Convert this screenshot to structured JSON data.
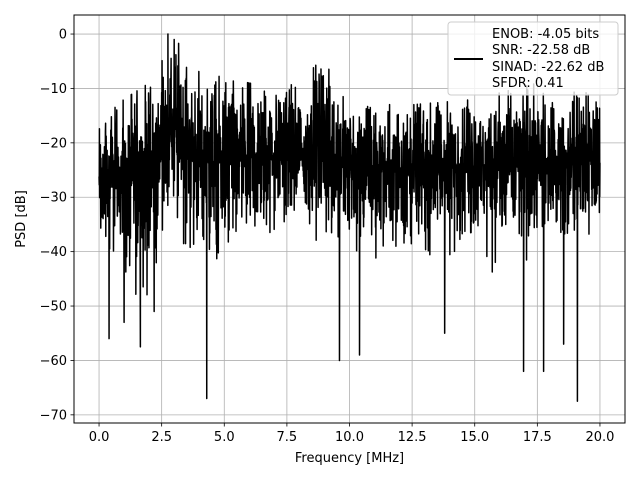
{
  "chart_data": {
    "type": "line",
    "title": "",
    "xlabel": "Frequency [MHz]",
    "ylabel": "PSD [dB]",
    "xlim": [
      -1.0,
      21.0
    ],
    "ylim": [
      -71.5,
      3.5
    ],
    "xticks": [
      0.0,
      2.5,
      5.0,
      7.5,
      10.0,
      12.5,
      15.0,
      17.5,
      20.0
    ],
    "xtick_labels": [
      "0.0",
      "2.5",
      "5.0",
      "7.5",
      "10.0",
      "12.5",
      "15.0",
      "17.5",
      "20.0"
    ],
    "yticks": [
      0,
      -10,
      -20,
      -30,
      -40,
      -50,
      -60,
      -70
    ],
    "ytick_labels": [
      "0",
      "−10",
      "−20",
      "−30",
      "−40",
      "−50",
      "−60",
      "−70"
    ],
    "grid": true,
    "legend_position": "top-right",
    "legend_entries": [
      "ENOB: -4.05 bits",
      "SNR: -22.58 dB",
      "SINAD: -22.62 dB",
      "SFDR: 0.41"
    ],
    "series": [
      {
        "color": "#000000",
        "x_range": [
          0.0,
          20.0
        ],
        "envelope": {
          "x": [
            0.0,
            1.0,
            2.0,
            2.5,
            3.0,
            3.5,
            4.0,
            5.0,
            6.0,
            7.0,
            8.0,
            9.0,
            9.5,
            10.0,
            12.5,
            15.0,
            17.5,
            18.0,
            19.0,
            20.0
          ],
          "upper": [
            -16,
            -12,
            -9,
            -5,
            -1,
            -3,
            -7,
            -8,
            -9,
            -10,
            -9,
            -4,
            -11,
            -12,
            -13,
            -12,
            -9,
            -13,
            -9,
            -13
          ],
          "lower": [
            -46,
            -52,
            -53,
            -46,
            -42,
            -46,
            -49,
            -47,
            -46,
            -44,
            -43,
            -45,
            -44,
            -46,
            -46,
            -45,
            -48,
            -45,
            -45,
            -41
          ]
        },
        "notable_points": [
          {
            "x": 0.4,
            "y": -56
          },
          {
            "x": 1.0,
            "y": -53
          },
          {
            "x": 1.65,
            "y": -57.5
          },
          {
            "x": 2.2,
            "y": -51
          },
          {
            "x": 2.75,
            "y": 0
          },
          {
            "x": 3.0,
            "y": -1
          },
          {
            "x": 4.3,
            "y": -67
          },
          {
            "x": 8.9,
            "y": -9
          },
          {
            "x": 9.6,
            "y": -60
          },
          {
            "x": 10.4,
            "y": -59
          },
          {
            "x": 13.8,
            "y": -55
          },
          {
            "x": 16.95,
            "y": -62
          },
          {
            "x": 17.75,
            "y": -62
          },
          {
            "x": 18.55,
            "y": -57
          },
          {
            "x": 19.1,
            "y": -67.5
          }
        ]
      }
    ]
  }
}
